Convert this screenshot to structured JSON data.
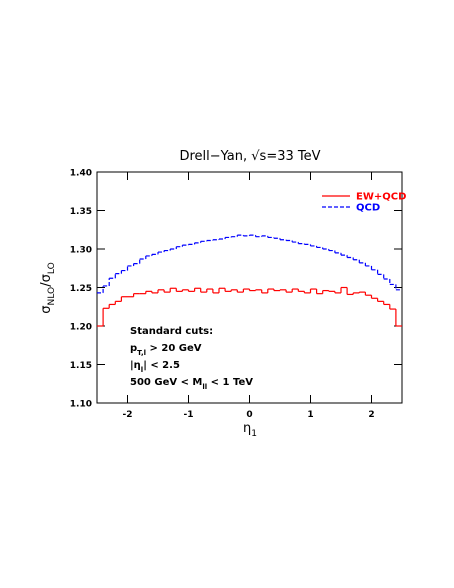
{
  "chart_data": {
    "type": "histogram",
    "title": "Drell−Yan, √s=33 TeV",
    "xlabel": [
      {
        "t": "η"
      },
      {
        "sub": "1"
      }
    ],
    "ylabel": [
      {
        "t": "σ"
      },
      {
        "sub": "NLO"
      },
      {
        "t": "/σ"
      },
      {
        "sub": "LO"
      }
    ],
    "bins": [
      -2.5,
      -2.4,
      -2.3,
      -2.2,
      -2.1,
      -2.0,
      -1.9,
      -1.8,
      -1.7,
      -1.6,
      -1.5,
      -1.4,
      -1.3,
      -1.2,
      -1.1,
      -1.0,
      -0.9,
      -0.8,
      -0.7,
      -0.6,
      -0.5,
      -0.4,
      -0.3,
      -0.2,
      -0.1,
      0.0,
      0.1,
      0.2,
      0.3,
      0.4,
      0.5,
      0.6,
      0.7,
      0.8,
      0.9,
      1.0,
      1.1,
      1.2,
      1.3,
      1.4,
      1.5,
      1.6,
      1.7,
      1.8,
      1.9,
      2.0,
      2.1,
      2.2,
      2.3,
      2.4,
      2.5
    ],
    "series": [
      {
        "name": "EW+QCD",
        "color": "#ff0000",
        "style": "solid",
        "values": [
          1.2,
          1.223,
          1.228,
          1.232,
          1.238,
          1.238,
          1.242,
          1.242,
          1.245,
          1.243,
          1.247,
          1.244,
          1.249,
          1.245,
          1.247,
          1.245,
          1.249,
          1.244,
          1.248,
          1.243,
          1.249,
          1.245,
          1.247,
          1.244,
          1.248,
          1.246,
          1.247,
          1.243,
          1.248,
          1.246,
          1.247,
          1.244,
          1.248,
          1.245,
          1.243,
          1.248,
          1.242,
          1.246,
          1.245,
          1.243,
          1.25,
          1.241,
          1.243,
          1.244,
          1.24,
          1.236,
          1.232,
          1.228,
          1.222,
          1.2
        ]
      },
      {
        "name": "QCD",
        "color": "#0000ff",
        "style": "dashed",
        "values": [
          1.243,
          1.252,
          1.262,
          1.268,
          1.272,
          1.278,
          1.281,
          1.287,
          1.291,
          1.293,
          1.296,
          1.298,
          1.3,
          1.303,
          1.305,
          1.306,
          1.308,
          1.31,
          1.311,
          1.312,
          1.313,
          1.315,
          1.316,
          1.318,
          1.317,
          1.318,
          1.316,
          1.317,
          1.315,
          1.314,
          1.312,
          1.311,
          1.309,
          1.307,
          1.306,
          1.304,
          1.302,
          1.3,
          1.298,
          1.295,
          1.292,
          1.289,
          1.286,
          1.282,
          1.278,
          1.273,
          1.267,
          1.261,
          1.254,
          1.247
        ]
      }
    ],
    "xlim": [
      -2.5,
      2.5
    ],
    "xticks": [
      -2,
      -1,
      0,
      1,
      2
    ],
    "ylim": [
      1.1,
      1.4
    ],
    "yticks": [
      {
        "value": 1.1,
        "label": "1.10"
      },
      1.15,
      {
        "value": 1.2,
        "label": "1.20"
      },
      1.25,
      {
        "value": 1.3,
        "label": "1.30"
      },
      1.35,
      {
        "value": 1.4,
        "label": "1.40"
      }
    ],
    "legend": "upper right",
    "annotations": [
      [
        {
          "t": "Standard cuts:"
        }
      ],
      [
        {
          "t": "p"
        },
        {
          "sub": "T,l"
        },
        {
          "t": " > 20 GeV"
        }
      ],
      [
        {
          "t": "|η"
        },
        {
          "sub": "l"
        },
        {
          "t": "| < 2.5"
        }
      ],
      [
        {
          "t": "500 GeV < M"
        },
        {
          "sub": "ll"
        },
        {
          "t": " < 1 TeV"
        }
      ]
    ]
  }
}
